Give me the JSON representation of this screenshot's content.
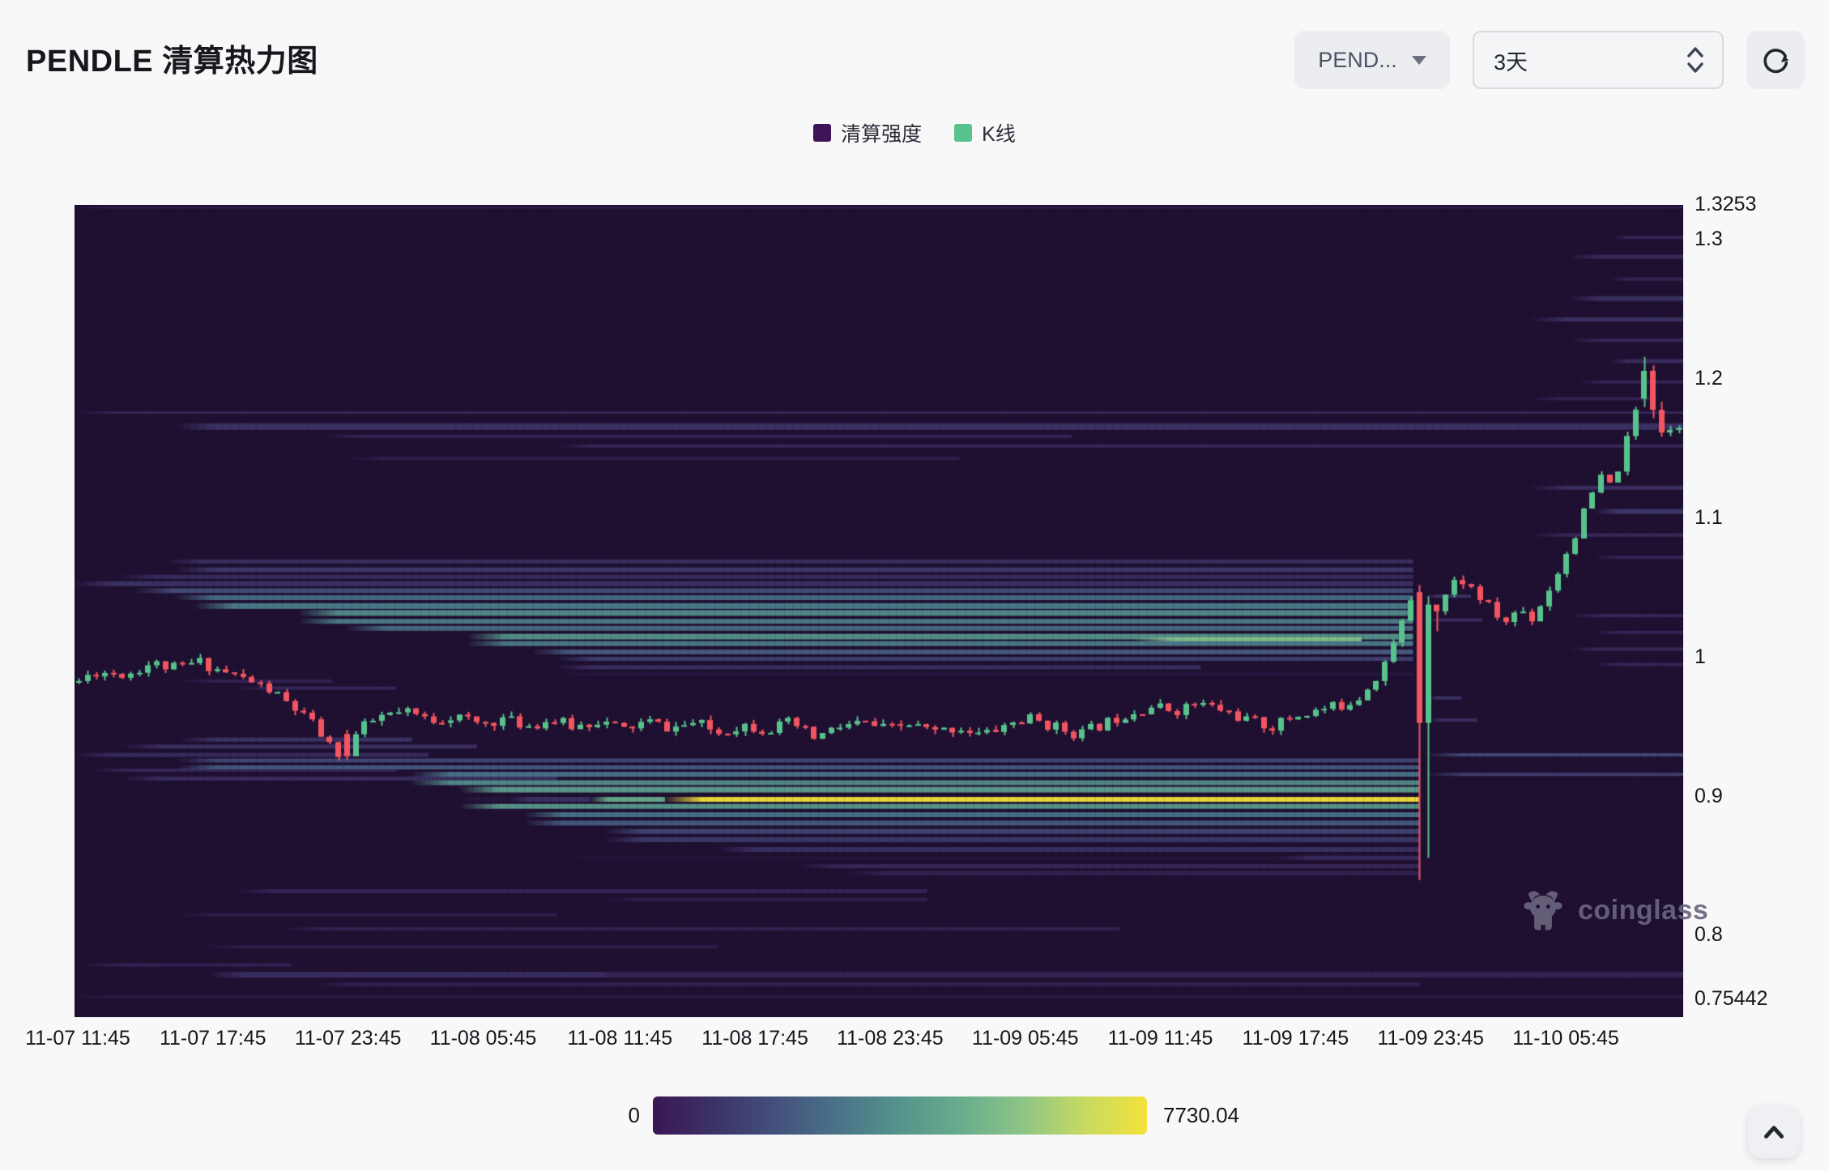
{
  "header": {
    "title": "PENDLE 清算热力图"
  },
  "controls": {
    "symbol_select": {
      "value": "PEND..."
    },
    "timeframe_select": {
      "value": "3天"
    }
  },
  "legend": {
    "items": [
      {
        "label": "清算强度",
        "color": "#3d1458"
      },
      {
        "label": "K线",
        "color": "#57c28b"
      }
    ]
  },
  "watermark": {
    "text": "coinglass"
  },
  "colorbar": {
    "min_label": "0",
    "max_label": "7730.04",
    "stops": [
      "#3a1654",
      "#3c3366",
      "#44517c",
      "#4a7389",
      "#55938c",
      "#68ad8d",
      "#8ec487",
      "#c8da60",
      "#f3e23b"
    ]
  },
  "chart_data": {
    "type": "heatmap",
    "overlay": "candlestick",
    "title": "PENDLE 清算热力图",
    "background": "#1f1031",
    "intensity_scale": {
      "min": 0,
      "max": 7730.04
    },
    "x_ticks": {
      "labels": [
        "11-07 11:45",
        "11-07 17:45",
        "11-07 23:45",
        "11-08 05:45",
        "11-08 11:45",
        "11-08 17:45",
        "11-08 23:45",
        "11-09 05:45",
        "11-09 11:45",
        "11-09 17:45",
        "11-09 23:45",
        "11-10 05:45"
      ],
      "fractions": [
        0.002,
        0.086,
        0.17,
        0.254,
        0.339,
        0.423,
        0.507,
        0.591,
        0.675,
        0.759,
        0.843,
        0.927
      ]
    },
    "y_axis": {
      "ticks": [
        {
          "label": "1.3253",
          "value": 1.3253
        },
        {
          "label": "1.3",
          "value": 1.3
        },
        {
          "label": "1.2",
          "value": 1.2
        },
        {
          "label": "1.1",
          "value": 1.1
        },
        {
          "label": "1",
          "value": 1.0
        },
        {
          "label": "0.9",
          "value": 0.9
        },
        {
          "label": "0.8",
          "value": 0.8
        },
        {
          "label": "0.75442",
          "value": 0.75442
        }
      ],
      "plot_price_top": 1.3253,
      "plot_price_bottom": 0.7415
    },
    "colormap_stops": [
      [
        0.0,
        "#1f1031"
      ],
      [
        0.08,
        "#291841"
      ],
      [
        0.18,
        "#332254"
      ],
      [
        0.3,
        "#3c3366"
      ],
      [
        0.42,
        "#44517c"
      ],
      [
        0.52,
        "#4a7389"
      ],
      [
        0.62,
        "#55938c"
      ],
      [
        0.72,
        "#68ad8d"
      ],
      [
        0.82,
        "#8ec487"
      ],
      [
        0.91,
        "#c8da60"
      ],
      [
        1.0,
        "#f3e23b"
      ]
    ],
    "bands": [
      [
        1.3235,
        0,
        1,
        0.15,
        3
      ],
      [
        1.176,
        0.002,
        1,
        0.22,
        3
      ],
      [
        1.166,
        0.063,
        1,
        0.3,
        8
      ],
      [
        1.159,
        0.155,
        0.62,
        0.2,
        4
      ],
      [
        1.152,
        0.3,
        1,
        0.22,
        4
      ],
      [
        1.143,
        0.17,
        0.55,
        0.16,
        4
      ],
      [
        1.302,
        0.955,
        1,
        0.2,
        4
      ],
      [
        1.288,
        0.93,
        1,
        0.24,
        5
      ],
      [
        1.272,
        0.955,
        1,
        0.2,
        4
      ],
      [
        1.258,
        0.93,
        1,
        0.28,
        6
      ],
      [
        1.243,
        0.905,
        1,
        0.3,
        5
      ],
      [
        1.228,
        0.93,
        1,
        0.22,
        4
      ],
      [
        1.213,
        0.955,
        1,
        0.26,
        5
      ],
      [
        1.198,
        0.935,
        1,
        0.2,
        4
      ],
      [
        1.186,
        0.905,
        0.98,
        0.18,
        4
      ],
      [
        1.122,
        0.905,
        1,
        0.28,
        5
      ],
      [
        1.105,
        0.945,
        1,
        0.32,
        6
      ],
      [
        1.088,
        0.905,
        1,
        0.24,
        4
      ],
      [
        1.072,
        0.945,
        1,
        0.2,
        4
      ],
      [
        1.03,
        0.93,
        1,
        0.22,
        4
      ],
      [
        1.018,
        0.945,
        1,
        0.2,
        4
      ],
      [
        1.006,
        0.93,
        1,
        0.24,
        4
      ],
      [
        0.995,
        0.945,
        1,
        0.2,
        4
      ],
      [
        1.069,
        0.057,
        0.832,
        0.28,
        5
      ],
      [
        1.063,
        0.063,
        0.832,
        0.32,
        6
      ],
      [
        1.058,
        0.028,
        0.832,
        0.26,
        5
      ],
      [
        1.053,
        0.0,
        0.832,
        0.3,
        6
      ],
      [
        1.048,
        0.038,
        0.832,
        0.4,
        6
      ],
      [
        1.043,
        0.063,
        0.832,
        0.5,
        6
      ],
      [
        1.037,
        0.075,
        0.832,
        0.55,
        7
      ],
      [
        1.032,
        0.14,
        0.832,
        0.6,
        7
      ],
      [
        1.026,
        0.14,
        0.832,
        0.55,
        6
      ],
      [
        1.021,
        0.17,
        0.832,
        0.5,
        6
      ],
      [
        1.015,
        0.245,
        0.832,
        0.62,
        7
      ],
      [
        1.013,
        0.66,
        0.8,
        0.8,
        5
      ],
      [
        1.01,
        0.245,
        0.832,
        0.55,
        6
      ],
      [
        1.004,
        0.285,
        0.832,
        0.45,
        6
      ],
      [
        0.999,
        0.3,
        0.832,
        0.36,
        5
      ],
      [
        0.993,
        0.3,
        0.7,
        0.28,
        5
      ],
      [
        0.988,
        0.3,
        0.832,
        0.07,
        4
      ],
      [
        1.044,
        0.84,
        0.868,
        0.3,
        4
      ],
      [
        1.027,
        0.84,
        0.875,
        0.26,
        4
      ],
      [
        0.971,
        0.842,
        0.862,
        0.3,
        4
      ],
      [
        0.955,
        0.842,
        0.872,
        0.28,
        4
      ],
      [
        0.93,
        0.84,
        1,
        0.4,
        4
      ],
      [
        0.916,
        0.84,
        1,
        0.35,
        4
      ],
      [
        0.983,
        0.065,
        0.16,
        0.18,
        4
      ],
      [
        0.978,
        0.1,
        0.2,
        0.22,
        4
      ],
      [
        0.941,
        0.065,
        0.21,
        0.3,
        5
      ],
      [
        0.936,
        0.03,
        0.25,
        0.28,
        5
      ],
      [
        0.93,
        0.0,
        0.22,
        0.25,
        5
      ],
      [
        0.919,
        0.01,
        0.2,
        0.22,
        4
      ],
      [
        0.913,
        0.03,
        0.3,
        0.26,
        5
      ],
      [
        0.926,
        0.065,
        0.836,
        0.38,
        5
      ],
      [
        0.921,
        0.065,
        0.836,
        0.45,
        5
      ],
      [
        0.916,
        0.21,
        0.836,
        0.52,
        6
      ],
      [
        0.91,
        0.21,
        0.836,
        0.6,
        6
      ],
      [
        0.905,
        0.24,
        0.836,
        0.66,
        7
      ],
      [
        0.898,
        0.24,
        0.27,
        0.06,
        6
      ],
      [
        0.898,
        0.27,
        0.32,
        0.3,
        6
      ],
      [
        0.898,
        0.32,
        0.367,
        0.72,
        6
      ],
      [
        0.898,
        0.367,
        0.836,
        1.0,
        6
      ],
      [
        0.893,
        0.24,
        0.836,
        0.64,
        6
      ],
      [
        0.887,
        0.28,
        0.836,
        0.52,
        6
      ],
      [
        0.881,
        0.28,
        0.836,
        0.45,
        6
      ],
      [
        0.875,
        0.33,
        0.836,
        0.38,
        6
      ],
      [
        0.869,
        0.33,
        0.836,
        0.32,
        6
      ],
      [
        0.862,
        0.4,
        0.836,
        0.28,
        6
      ],
      [
        0.856,
        0.3,
        0.745,
        0.05,
        4
      ],
      [
        0.856,
        0.745,
        0.836,
        0.25,
        5
      ],
      [
        0.85,
        0.45,
        0.836,
        0.22,
        5
      ],
      [
        0.845,
        0.48,
        0.836,
        0.18,
        5
      ],
      [
        0.832,
        0.1,
        0.53,
        0.2,
        5
      ],
      [
        0.826,
        0.33,
        0.53,
        0.16,
        4
      ],
      [
        0.815,
        0.065,
        0.3,
        0.15,
        4
      ],
      [
        0.805,
        0.13,
        0.65,
        0.18,
        4
      ],
      [
        0.792,
        0.08,
        0.4,
        0.14,
        4
      ],
      [
        0.779,
        0.003,
        0.135,
        0.18,
        4
      ],
      [
        0.772,
        0.085,
        1,
        0.2,
        7
      ],
      [
        0.772,
        0.085,
        0.33,
        0.26,
        7
      ],
      [
        0.765,
        0.15,
        0.836,
        0.17,
        5
      ],
      [
        0.756,
        0.0,
        1,
        0.1,
        4
      ]
    ],
    "candles": {
      "count": 186,
      "seed": 11,
      "noise": 0.0042,
      "wick": 0.0035,
      "body_frac": 0.62,
      "up_color": "#57c28b",
      "down_color": "#f2555f",
      "price_anchors": [
        [
          0,
          0.983
        ],
        [
          0.01,
          0.99
        ],
        [
          0.03,
          0.988
        ],
        [
          0.045,
          0.996
        ],
        [
          0.06,
          0.992
        ],
        [
          0.075,
          0.997
        ],
        [
          0.09,
          0.99
        ],
        [
          0.105,
          0.984
        ],
        [
          0.12,
          0.976
        ],
        [
          0.135,
          0.963
        ],
        [
          0.148,
          0.95
        ],
        [
          0.158,
          0.934
        ],
        [
          0.165,
          0.93
        ],
        [
          0.175,
          0.948
        ],
        [
          0.19,
          0.958
        ],
        [
          0.205,
          0.96
        ],
        [
          0.22,
          0.955
        ],
        [
          0.235,
          0.958
        ],
        [
          0.25,
          0.952
        ],
        [
          0.265,
          0.956
        ],
        [
          0.28,
          0.951
        ],
        [
          0.295,
          0.955
        ],
        [
          0.31,
          0.95
        ],
        [
          0.325,
          0.955
        ],
        [
          0.34,
          0.948
        ],
        [
          0.355,
          0.954
        ],
        [
          0.37,
          0.949
        ],
        [
          0.385,
          0.953
        ],
        [
          0.4,
          0.946
        ],
        [
          0.415,
          0.952
        ],
        [
          0.43,
          0.948
        ],
        [
          0.445,
          0.953
        ],
        [
          0.46,
          0.942
        ],
        [
          0.475,
          0.95
        ],
        [
          0.49,
          0.953
        ],
        [
          0.505,
          0.948
        ],
        [
          0.52,
          0.952
        ],
        [
          0.535,
          0.946
        ],
        [
          0.55,
          0.95
        ],
        [
          0.565,
          0.944
        ],
        [
          0.58,
          0.952
        ],
        [
          0.595,
          0.956
        ],
        [
          0.61,
          0.95
        ],
        [
          0.625,
          0.945
        ],
        [
          0.64,
          0.952
        ],
        [
          0.655,
          0.96
        ],
        [
          0.67,
          0.965
        ],
        [
          0.685,
          0.962
        ],
        [
          0.7,
          0.967
        ],
        [
          0.715,
          0.962
        ],
        [
          0.73,
          0.955
        ],
        [
          0.745,
          0.95
        ],
        [
          0.76,
          0.958
        ],
        [
          0.775,
          0.962
        ],
        [
          0.79,
          0.966
        ],
        [
          0.8,
          0.972
        ],
        [
          0.81,
          0.985
        ],
        [
          0.82,
          1.004
        ],
        [
          0.828,
          1.028
        ],
        [
          0.834,
          1.047
        ],
        [
          0.838,
          0.953
        ],
        [
          0.842,
          1.02
        ],
        [
          0.848,
          1.034
        ],
        [
          0.855,
          1.047
        ],
        [
          0.862,
          1.058
        ],
        [
          0.87,
          1.05
        ],
        [
          0.878,
          1.04
        ],
        [
          0.886,
          1.03
        ],
        [
          0.893,
          1.025
        ],
        [
          0.9,
          1.036
        ],
        [
          0.908,
          1.028
        ],
        [
          0.915,
          1.041
        ],
        [
          0.922,
          1.056
        ],
        [
          0.93,
          1.076
        ],
        [
          0.938,
          1.096
        ],
        [
          0.945,
          1.116
        ],
        [
          0.952,
          1.13
        ],
        [
          0.958,
          1.122
        ],
        [
          0.965,
          1.146
        ],
        [
          0.972,
          1.172
        ],
        [
          0.978,
          1.202
        ],
        [
          0.984,
          1.186
        ],
        [
          0.99,
          1.16
        ],
        [
          1,
          1.168
        ]
      ],
      "specials": [
        {
          "t": 0.838,
          "o": 1.047,
          "c": 0.953,
          "h": 1.052,
          "l": 0.84
        },
        {
          "t": 0.842,
          "o": 0.953,
          "c": 1.038,
          "h": 1.044,
          "l": 0.856
        },
        {
          "t": 0.165,
          "o": 0.945,
          "c": 0.929,
          "h": 0.948,
          "l": 0.9265
        },
        {
          "t": 0.978,
          "o": 1.186,
          "c": 1.206,
          "h": 1.216,
          "l": 1.18
        },
        {
          "t": 0.984,
          "o": 1.206,
          "c": 1.178,
          "h": 1.21,
          "l": 1.172
        }
      ]
    }
  }
}
